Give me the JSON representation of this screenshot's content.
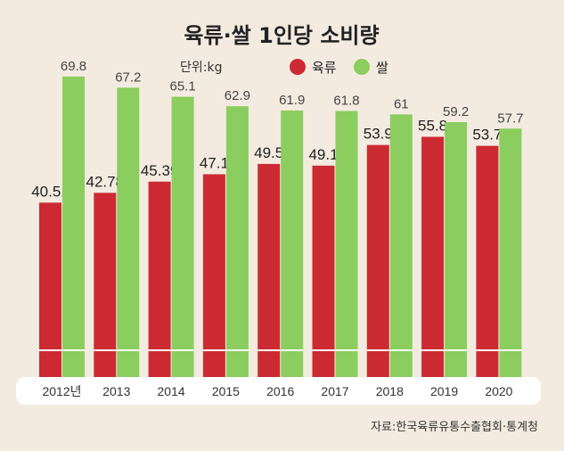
{
  "colors": {
    "meat": "#cc2a33",
    "rice": "#8bcd5e",
    "background": "#f3ebe0",
    "axis_band": "#ffffff"
  },
  "chart_data": {
    "type": "bar",
    "title": "육류·쌀 1인당 소비량",
    "unit": "단위:kg",
    "categories": [
      "2012년",
      "2013",
      "2014",
      "2015",
      "2016",
      "2017",
      "2018",
      "2019",
      "2020"
    ],
    "series": [
      {
        "name": "육류",
        "values": [
          "40.51",
          "42.78",
          "45.39",
          "47.1",
          "49.5",
          "49.1",
          "53.9",
          "55.8",
          "53.7"
        ]
      },
      {
        "name": "쌀",
        "values": [
          "69.8",
          "67.2",
          "65.1",
          "62.9",
          "61.9",
          "61.8",
          "61",
          "59.2",
          "57.7"
        ]
      }
    ],
    "legend_position": "top-center",
    "ylim": [
      0,
      75
    ]
  },
  "source": "자료:한국육류유통수출협회·통계청"
}
